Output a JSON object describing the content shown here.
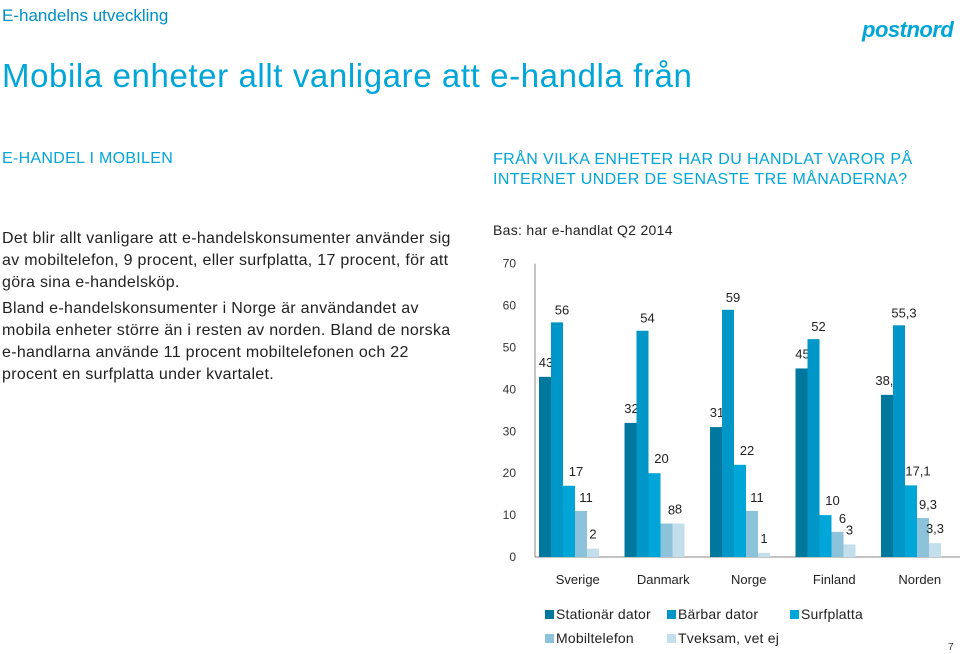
{
  "header": {
    "section_label": "E-handelns utveckling",
    "title": "Mobila enheter allt vanligare att e-handla från",
    "logo_text": "postnord"
  },
  "left": {
    "heading": "E-HANDEL I MOBILEN",
    "paragraph1": "Det blir allt vanligare att e-handelskonsumenter använder sig av mobiltelefon, 9 procent, eller surfplatta, 17 procent, för att göra sina e-handelsköp.",
    "paragraph2": "Bland e-handelskonsumenter i Norge är användandet av mobila enheter större än i resten av norden. Bland de norska e-handlarna använde 11 procent mobiltelefonen och 22 procent en surfplatta under kvartalet."
  },
  "chart_header": {
    "question": "FRÅN VILKA ENHETER HAR DU HANDLAT VAROR PÅ INTERNET UNDER DE SENASTE TRE MÅNADERNA?",
    "base": "Bas: har e-handlat Q2 2014"
  },
  "page_number": "7",
  "colors": {
    "accent": "#00a6d8",
    "stationar": "#00789e",
    "barbar": "#0096c8",
    "surfplatta": "#00a6d8",
    "mobiltelefon": "#8cc3da",
    "tveksam": "#c3dfeb"
  },
  "chart_data": {
    "type": "bar",
    "categories": [
      "Sverige",
      "Danmark",
      "Norge",
      "Finland",
      "Norden"
    ],
    "ylim": [
      0,
      70
    ],
    "yticks": [
      0,
      10,
      20,
      30,
      40,
      50,
      60,
      70
    ],
    "grid": false,
    "legend_position": "bottom",
    "series": [
      {
        "name": "Stationär dator",
        "color": "#00789e",
        "values": [
          43,
          32,
          31,
          45,
          38.7
        ],
        "labels": [
          "43",
          "32",
          "31",
          "45",
          "38,7"
        ]
      },
      {
        "name": "Bärbar dator",
        "color": "#0096c8",
        "values": [
          56,
          54,
          59,
          52,
          55.3
        ],
        "labels": [
          "56",
          "54",
          "59",
          "52",
          "55,3"
        ]
      },
      {
        "name": "Surfplatta",
        "color": "#00a6d8",
        "values": [
          17,
          20,
          22,
          10,
          17.1
        ],
        "labels": [
          "17",
          "20",
          "22",
          "10",
          "17,1"
        ]
      },
      {
        "name": "Mobiltelefon",
        "color": "#8cc3da",
        "values": [
          11,
          8,
          11,
          6,
          9.3
        ],
        "labels": [
          "11",
          "8",
          "11",
          "6",
          "9,3"
        ]
      },
      {
        "name": "Tveksam, vet ej",
        "color": "#c3dfeb",
        "values": [
          2,
          8,
          1,
          3,
          3.3
        ],
        "labels": [
          "2",
          "8",
          "1",
          "3",
          "3,3"
        ]
      }
    ]
  }
}
